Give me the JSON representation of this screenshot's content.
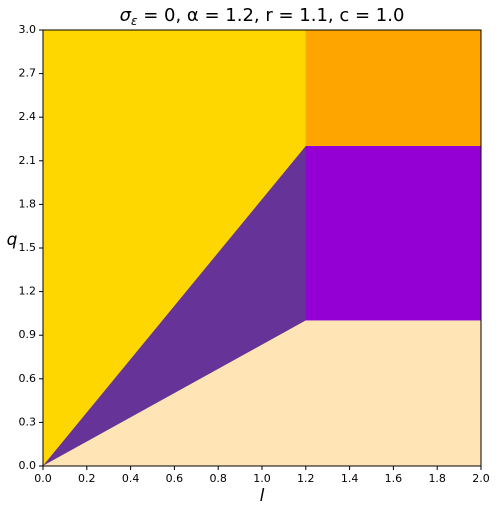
{
  "chart_data": {
    "type": "region",
    "title": [
      "σ",
      "ε",
      " = 0, α =  1.2, r =  1.1, c =  1.0"
    ],
    "x_label": "l",
    "y_label": "q",
    "xlim": [
      0,
      2
    ],
    "ylim": [
      0,
      3
    ],
    "xticks": [
      {
        "value": 0,
        "label": "0.0"
      },
      0.2,
      0.4,
      0.6,
      0.8,
      {
        "value": 1,
        "label": "1.0"
      },
      1.2,
      1.4,
      1.6,
      1.8,
      {
        "value": 2,
        "label": "2.0"
      }
    ],
    "yticks": [
      {
        "value": 0,
        "label": "0.0"
      },
      0.3,
      0.6,
      0.9,
      1.2,
      1.5,
      1.8,
      2.1,
      2.4,
      2.7,
      {
        "value": 3,
        "label": "3.0"
      }
    ],
    "regions": [
      {
        "color": "#ffd700",
        "x": [
          0,
          1.2,
          1.2,
          0
        ],
        "y": [
          0,
          2.2,
          3,
          3
        ]
      },
      {
        "color": "#ffa500",
        "x": [
          1.2,
          2,
          2,
          1.2
        ],
        "y": [
          2.2,
          2.2,
          3,
          3
        ]
      },
      {
        "color": "#9400d3",
        "x": [
          1.2,
          2,
          2,
          1.2
        ],
        "y": [
          1,
          1,
          2.2,
          2.2
        ]
      },
      {
        "color": "#663399",
        "x": [
          0,
          1.2,
          1.2
        ],
        "y": [
          0,
          1,
          2.2
        ]
      },
      {
        "color": "#ffe4b5",
        "x": [
          0,
          2,
          2,
          1.2
        ],
        "y": [
          0,
          0,
          1,
          1
        ]
      }
    ]
  }
}
